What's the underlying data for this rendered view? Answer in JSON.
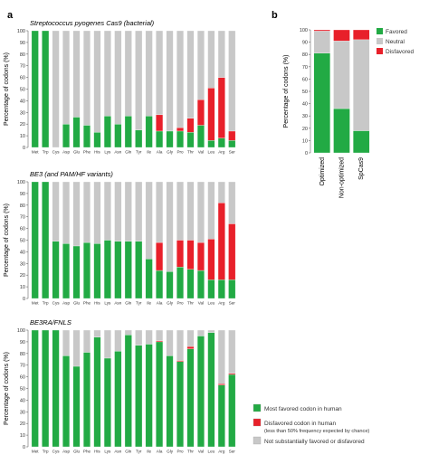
{
  "figure": {
    "panel_a_letter": "a",
    "panel_b_letter": "b",
    "ylabel": "Percentage of codons (%)",
    "colors": {
      "favored": "#22aa44",
      "disfavored": "#e8202a",
      "neutral": "#c8c8c8"
    }
  },
  "legend_bottom": [
    {
      "key": "favored",
      "label": "Most favored codon in human",
      "label2": ""
    },
    {
      "key": "disfavored",
      "label": "Disfavored codon in human",
      "label2": "(less than 50% frequency expected by chance)"
    },
    {
      "key": "neutral",
      "label": "Not substantially favored or disfavored",
      "label2": ""
    }
  ],
  "legend_b": [
    {
      "key": "favored",
      "label": "Favored"
    },
    {
      "key": "neutral",
      "label": "Neutral"
    },
    {
      "key": "disfavored",
      "label": "Disfavored"
    }
  ],
  "chart_data": [
    {
      "type": "bar",
      "stacked": true,
      "title": "Streptococcus pyogenes Cas9 (bacterial)",
      "ylabel": "Percentage of codons (%)",
      "ylim": [
        0,
        100
      ],
      "yticks": [
        0,
        10,
        20,
        30,
        40,
        50,
        60,
        70,
        80,
        90,
        100
      ],
      "categories": [
        "Met",
        "Trp",
        "Cys",
        "Asp",
        "Glu",
        "Phe",
        "His",
        "Lys",
        "Asn",
        "Gln",
        "Tyr",
        "Ile",
        "Ala",
        "Gly",
        "Pro",
        "Thr",
        "Val",
        "Leu",
        "Arg",
        "Ser"
      ],
      "series": [
        {
          "key": "favored",
          "values": [
            100,
            100,
            0,
            20,
            26,
            19,
            13,
            27,
            20,
            27,
            15,
            27,
            14,
            14,
            14,
            13,
            19,
            6,
            8,
            6
          ]
        },
        {
          "key": "disfavored",
          "values": [
            0,
            0,
            0,
            0,
            0,
            0,
            0,
            0,
            0,
            0,
            0,
            0,
            14,
            0,
            3,
            12,
            22,
            45,
            52,
            8
          ]
        },
        {
          "key": "neutral",
          "values": [
            0,
            0,
            100,
            80,
            74,
            81,
            87,
            73,
            80,
            73,
            85,
            73,
            72,
            86,
            83,
            75,
            59,
            49,
            40,
            86
          ]
        }
      ]
    },
    {
      "type": "bar",
      "stacked": true,
      "title": "BE3 (and PAM/HF variants)",
      "ylabel": "Percentage of codons (%)",
      "ylim": [
        0,
        100
      ],
      "yticks": [
        0,
        10,
        20,
        30,
        40,
        50,
        60,
        70,
        80,
        90,
        100
      ],
      "categories": [
        "Met",
        "Trp",
        "Cys",
        "Asp",
        "Glu",
        "Phe",
        "His",
        "Lys",
        "Asn",
        "Gln",
        "Tyr",
        "Ile",
        "Ala",
        "Gly",
        "Pro",
        "Thr",
        "Val",
        "Leu",
        "Arg",
        "Ser"
      ],
      "series": [
        {
          "key": "favored",
          "values": [
            100,
            100,
            49,
            47,
            45,
            48,
            47,
            50,
            49,
            49,
            49,
            34,
            24,
            23,
            27,
            25,
            24,
            16,
            16,
            16
          ]
        },
        {
          "key": "disfavored",
          "values": [
            0,
            0,
            0,
            0,
            0,
            0,
            0,
            0,
            0,
            0,
            0,
            0,
            24,
            0,
            23,
            25,
            24,
            35,
            66,
            48
          ]
        },
        {
          "key": "neutral",
          "values": [
            0,
            0,
            51,
            53,
            55,
            52,
            53,
            50,
            51,
            51,
            51,
            66,
            52,
            77,
            50,
            50,
            52,
            49,
            18,
            36
          ]
        }
      ]
    },
    {
      "type": "bar",
      "stacked": true,
      "title": "BE3RA/FNLS",
      "ylabel": "Percentage of codons (%)",
      "ylim": [
        0,
        100
      ],
      "yticks": [
        0,
        10,
        20,
        30,
        40,
        50,
        60,
        70,
        80,
        90,
        100
      ],
      "categories": [
        "Met",
        "Trp",
        "Cys",
        "Asp",
        "Glu",
        "Phe",
        "His",
        "Lys",
        "Asn",
        "Gln",
        "Tyr",
        "Ile",
        "Ala",
        "Gly",
        "Pro",
        "Thr",
        "Val",
        "Leu",
        "Arg",
        "Ser"
      ],
      "series": [
        {
          "key": "favored",
          "values": [
            100,
            100,
            100,
            78,
            69,
            81,
            94,
            76,
            82,
            96,
            87,
            88,
            90,
            78,
            73,
            84,
            95,
            98,
            53,
            62
          ]
        },
        {
          "key": "disfavored",
          "values": [
            0,
            0,
            0,
            0,
            0,
            0,
            0,
            0,
            0,
            0,
            0,
            0,
            1,
            0,
            1,
            2,
            0,
            0,
            1,
            1
          ]
        },
        {
          "key": "neutral",
          "values": [
            0,
            0,
            0,
            22,
            31,
            19,
            6,
            24,
            18,
            4,
            13,
            12,
            9,
            22,
            26,
            14,
            5,
            2,
            46,
            37
          ]
        }
      ]
    },
    {
      "type": "bar",
      "stacked": true,
      "title": "",
      "ylabel": "Percentage of codons (%)",
      "ylim": [
        0,
        100
      ],
      "yticks": [
        0,
        10,
        20,
        30,
        40,
        50,
        60,
        70,
        80,
        90,
        100
      ],
      "categories": [
        "Optimized",
        "Non-optimized",
        "SpCas9"
      ],
      "series": [
        {
          "key": "favored",
          "values": [
            81,
            36,
            18
          ]
        },
        {
          "key": "neutral",
          "values": [
            18,
            55,
            74
          ]
        },
        {
          "key": "disfavored",
          "values": [
            1,
            9,
            8
          ]
        }
      ]
    }
  ]
}
